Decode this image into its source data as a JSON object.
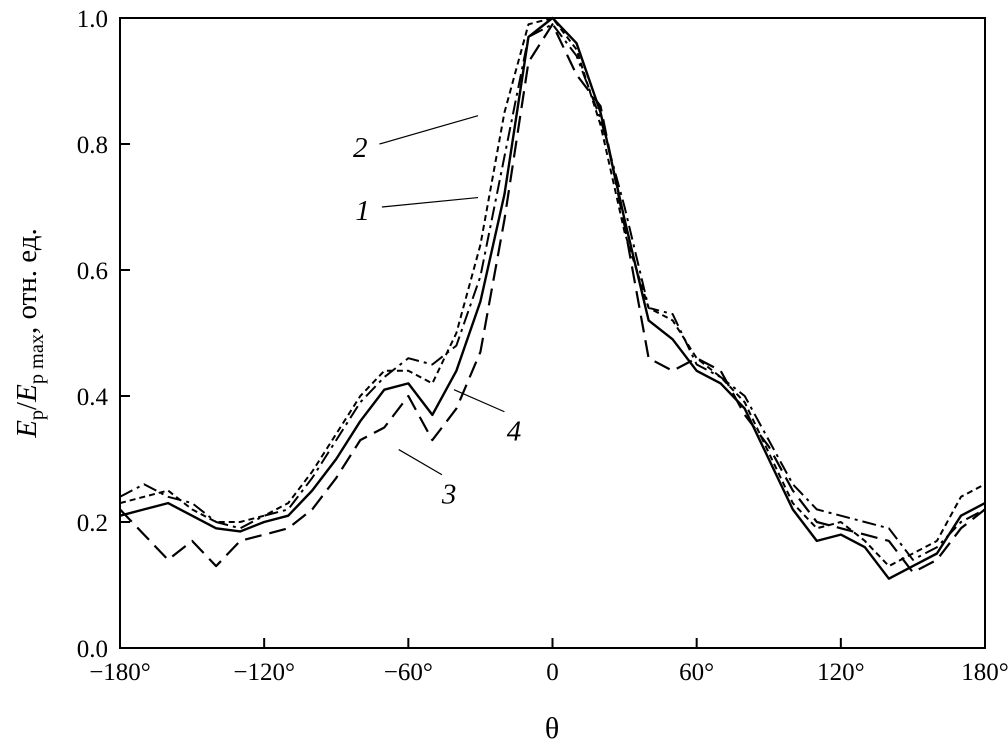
{
  "figure": {
    "background": "#ffffff",
    "ink": "#000000"
  },
  "chart_data": {
    "type": "line",
    "title": "",
    "xlabel": "θ",
    "ylabel": {
      "e1": "E",
      "sub1": "p",
      "slash": "/",
      "e2": "E",
      "sub2": "p max",
      "suffix": ", отн. ед."
    },
    "ylabel_plain": "Ep/Ep max, отн. ед.",
    "xlim": [
      -180,
      180
    ],
    "ylim": [
      0,
      1
    ],
    "grid": false,
    "legend": "none",
    "x_ticks": {
      "values": [
        -180,
        -120,
        -60,
        0,
        60,
        120,
        180
      ],
      "labels": [
        "−180°",
        "−120°",
        "−60°",
        "0",
        "60°",
        "120°",
        "180°"
      ]
    },
    "y_ticks": {
      "values": [
        0,
        0.2,
        0.4,
        0.6,
        0.8,
        1.0
      ],
      "labels": [
        "0.0",
        "0.2",
        "0.4",
        "0.6",
        "0.8",
        "1.0"
      ]
    },
    "x": [
      -180,
      -170,
      -160,
      -150,
      -140,
      -130,
      -120,
      -110,
      -100,
      -90,
      -80,
      -70,
      -60,
      -50,
      -40,
      -30,
      -20,
      -10,
      0,
      10,
      20,
      30,
      40,
      50,
      60,
      70,
      80,
      90,
      100,
      110,
      120,
      130,
      140,
      150,
      160,
      170,
      180
    ],
    "series": [
      {
        "name": "1",
        "style": "dash-dot",
        "dash": "14 5 3 5",
        "width": 2,
        "values": [
          0.24,
          0.26,
          0.24,
          0.23,
          0.2,
          0.19,
          0.21,
          0.22,
          0.27,
          0.33,
          0.39,
          0.43,
          0.46,
          0.45,
          0.48,
          0.59,
          0.78,
          0.97,
          0.99,
          0.94,
          0.84,
          0.7,
          0.54,
          0.53,
          0.45,
          0.43,
          0.4,
          0.33,
          0.26,
          0.22,
          0.21,
          0.2,
          0.19,
          0.14,
          0.16,
          0.2,
          0.22
        ]
      },
      {
        "name": "2",
        "style": "short-dash",
        "dash": "6 4",
        "width": 2,
        "values": [
          0.23,
          0.24,
          0.25,
          0.22,
          0.2,
          0.2,
          0.21,
          0.23,
          0.28,
          0.34,
          0.4,
          0.44,
          0.44,
          0.42,
          0.5,
          0.64,
          0.85,
          0.99,
          1.0,
          0.95,
          0.83,
          0.66,
          0.54,
          0.52,
          0.46,
          0.43,
          0.39,
          0.31,
          0.23,
          0.19,
          0.2,
          0.17,
          0.13,
          0.15,
          0.17,
          0.24,
          0.26
        ]
      },
      {
        "name": "3",
        "style": "long-dash",
        "dash": "17 8",
        "width": 2.2,
        "values": [
          0.22,
          0.18,
          0.14,
          0.17,
          0.13,
          0.17,
          0.18,
          0.19,
          0.22,
          0.27,
          0.33,
          0.35,
          0.4,
          0.33,
          0.38,
          0.47,
          0.68,
          0.93,
          0.99,
          0.91,
          0.86,
          0.67,
          0.46,
          0.44,
          0.46,
          0.44,
          0.37,
          0.32,
          0.25,
          0.2,
          0.19,
          0.18,
          0.17,
          0.12,
          0.14,
          0.19,
          0.22
        ]
      },
      {
        "name": "4",
        "style": "solid",
        "dash": "",
        "width": 2.4,
        "values": [
          0.21,
          0.22,
          0.23,
          0.21,
          0.19,
          0.185,
          0.2,
          0.21,
          0.25,
          0.3,
          0.36,
          0.41,
          0.42,
          0.37,
          0.44,
          0.55,
          0.72,
          0.97,
          1.0,
          0.96,
          0.85,
          0.68,
          0.52,
          0.49,
          0.44,
          0.42,
          0.38,
          0.3,
          0.22,
          0.17,
          0.18,
          0.16,
          0.11,
          0.13,
          0.15,
          0.21,
          0.23
        ]
      }
    ],
    "annotations": [
      {
        "text": "2",
        "x": -80,
        "y": 0.795,
        "line": [
          -72,
          0.8,
          -31,
          0.845
        ]
      },
      {
        "text": "1",
        "x": -79,
        "y": 0.695,
        "line": [
          -71,
          0.7,
          -31,
          0.715
        ]
      },
      {
        "text": "4",
        "x": -16,
        "y": 0.345,
        "line": [
          -20,
          0.375,
          -41,
          0.41
        ]
      },
      {
        "text": "3",
        "x": -43,
        "y": 0.245,
        "line": [
          -46,
          0.275,
          -64,
          0.315
        ]
      }
    ]
  }
}
